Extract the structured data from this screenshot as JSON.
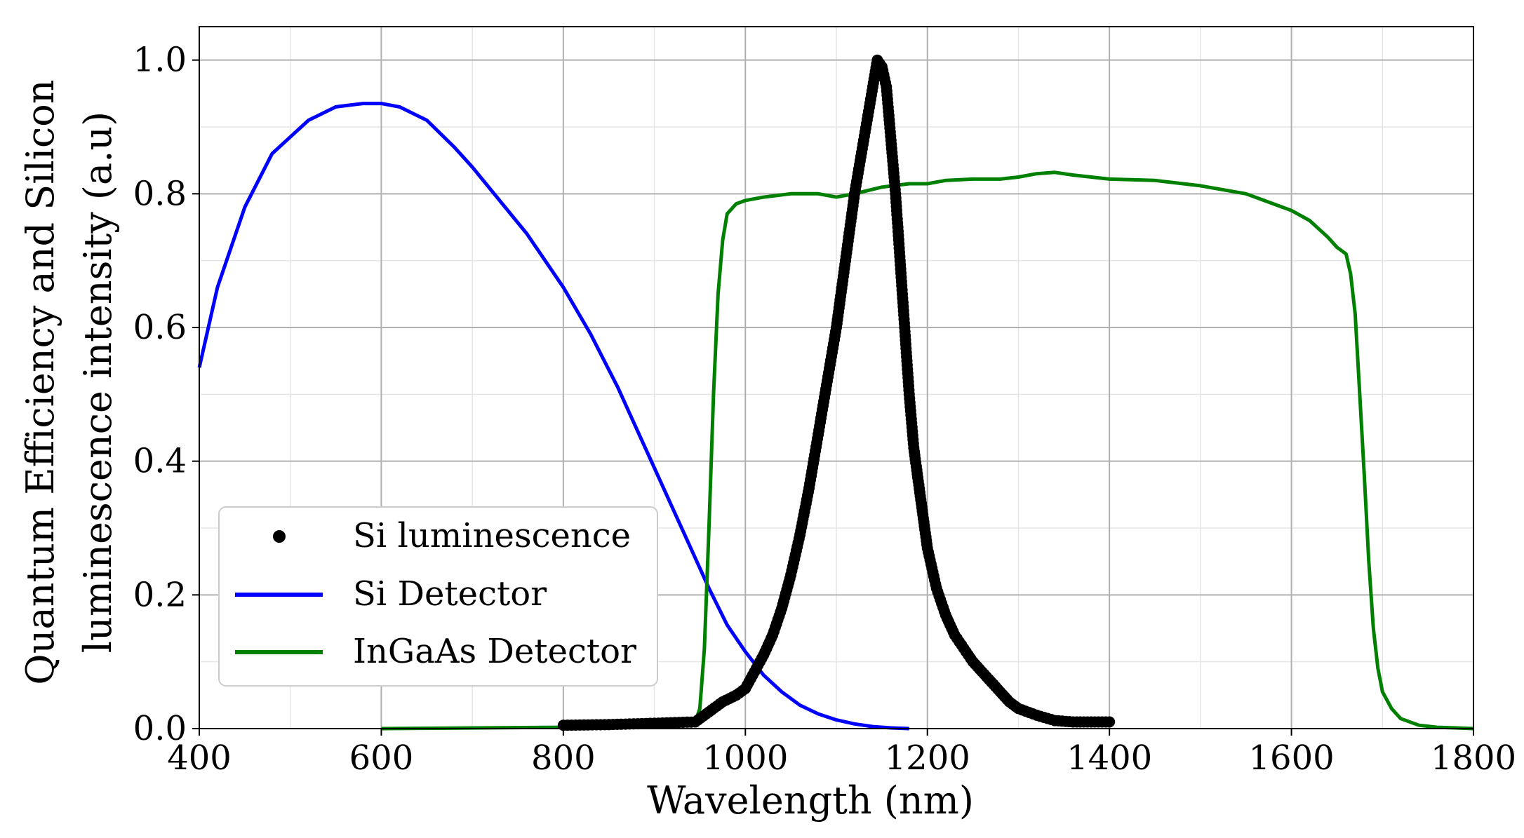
{
  "chart_data": {
    "type": "line",
    "title": "",
    "xlabel": "Wavelength (nm)",
    "ylabel_line1": "Quantum Efficiency and Silicon",
    "ylabel_line2": "luminescence intensity (a.u)",
    "xlim": [
      400,
      1800
    ],
    "ylim": [
      0.0,
      1.05
    ],
    "grid": true,
    "x_ticks": [
      400,
      600,
      800,
      1000,
      1200,
      1400,
      1600,
      1800
    ],
    "x_tick_labels": [
      "400",
      "600",
      "800",
      "1000",
      "1200",
      "1400",
      "1600",
      "1800"
    ],
    "y_ticks": [
      0.0,
      0.2,
      0.4,
      0.6,
      0.8,
      1.0
    ],
    "y_tick_labels": [
      "0.0",
      "0.2",
      "0.4",
      "0.6",
      "0.8",
      "1.0"
    ],
    "legend_position": "lower-left",
    "series": [
      {
        "name": "Si luminescence",
        "style": "markers",
        "color": "#000000",
        "x": [
          800,
          850,
          900,
          945,
          960,
          975,
          990,
          1000,
          1010,
          1020,
          1030,
          1040,
          1050,
          1060,
          1070,
          1080,
          1090,
          1100,
          1110,
          1120,
          1130,
          1140,
          1145,
          1150,
          1155,
          1160,
          1165,
          1170,
          1175,
          1180,
          1185,
          1190,
          1195,
          1200,
          1210,
          1220,
          1230,
          1240,
          1250,
          1260,
          1270,
          1280,
          1290,
          1300,
          1320,
          1340,
          1360,
          1380,
          1400
        ],
        "y": [
          0.005,
          0.006,
          0.008,
          0.01,
          0.025,
          0.04,
          0.05,
          0.06,
          0.085,
          0.11,
          0.14,
          0.18,
          0.23,
          0.29,
          0.36,
          0.44,
          0.52,
          0.6,
          0.7,
          0.8,
          0.88,
          0.96,
          1.0,
          0.99,
          0.96,
          0.88,
          0.8,
          0.7,
          0.6,
          0.5,
          0.42,
          0.37,
          0.32,
          0.27,
          0.21,
          0.17,
          0.14,
          0.12,
          0.1,
          0.085,
          0.07,
          0.055,
          0.04,
          0.03,
          0.02,
          0.012,
          0.01,
          0.01,
          0.01
        ]
      },
      {
        "name": "Si Detector",
        "style": "line",
        "color": "#0000ff",
        "x": [
          400,
          420,
          450,
          480,
          500,
          520,
          550,
          580,
          600,
          620,
          650,
          680,
          700,
          730,
          760,
          800,
          830,
          860,
          880,
          900,
          920,
          940,
          960,
          980,
          1000,
          1020,
          1040,
          1060,
          1080,
          1100,
          1120,
          1140,
          1160,
          1180
        ],
        "y": [
          0.54,
          0.66,
          0.78,
          0.86,
          0.885,
          0.91,
          0.93,
          0.935,
          0.935,
          0.93,
          0.91,
          0.87,
          0.84,
          0.79,
          0.74,
          0.66,
          0.59,
          0.51,
          0.45,
          0.39,
          0.33,
          0.27,
          0.21,
          0.155,
          0.115,
          0.08,
          0.055,
          0.035,
          0.022,
          0.013,
          0.007,
          0.003,
          0.001,
          0.0
        ]
      },
      {
        "name": "InGaAs Detector",
        "style": "line",
        "color": "#008000",
        "x": [
          600,
          800,
          900,
          945,
          950,
          955,
          960,
          965,
          970,
          975,
          980,
          990,
          1000,
          1020,
          1050,
          1080,
          1100,
          1120,
          1150,
          1180,
          1200,
          1220,
          1250,
          1280,
          1300,
          1320,
          1340,
          1360,
          1400,
          1450,
          1500,
          1550,
          1580,
          1600,
          1620,
          1640,
          1650,
          1660,
          1665,
          1670,
          1675,
          1680,
          1685,
          1690,
          1695,
          1700,
          1710,
          1720,
          1740,
          1760,
          1780,
          1800
        ],
        "y": [
          0.0,
          0.002,
          0.004,
          0.01,
          0.03,
          0.12,
          0.3,
          0.5,
          0.65,
          0.73,
          0.77,
          0.785,
          0.79,
          0.795,
          0.8,
          0.8,
          0.795,
          0.8,
          0.81,
          0.815,
          0.815,
          0.82,
          0.822,
          0.822,
          0.825,
          0.83,
          0.832,
          0.828,
          0.822,
          0.82,
          0.812,
          0.8,
          0.785,
          0.775,
          0.76,
          0.735,
          0.72,
          0.71,
          0.68,
          0.62,
          0.5,
          0.38,
          0.25,
          0.15,
          0.09,
          0.055,
          0.03,
          0.015,
          0.005,
          0.002,
          0.001,
          0.0
        ]
      }
    ]
  }
}
